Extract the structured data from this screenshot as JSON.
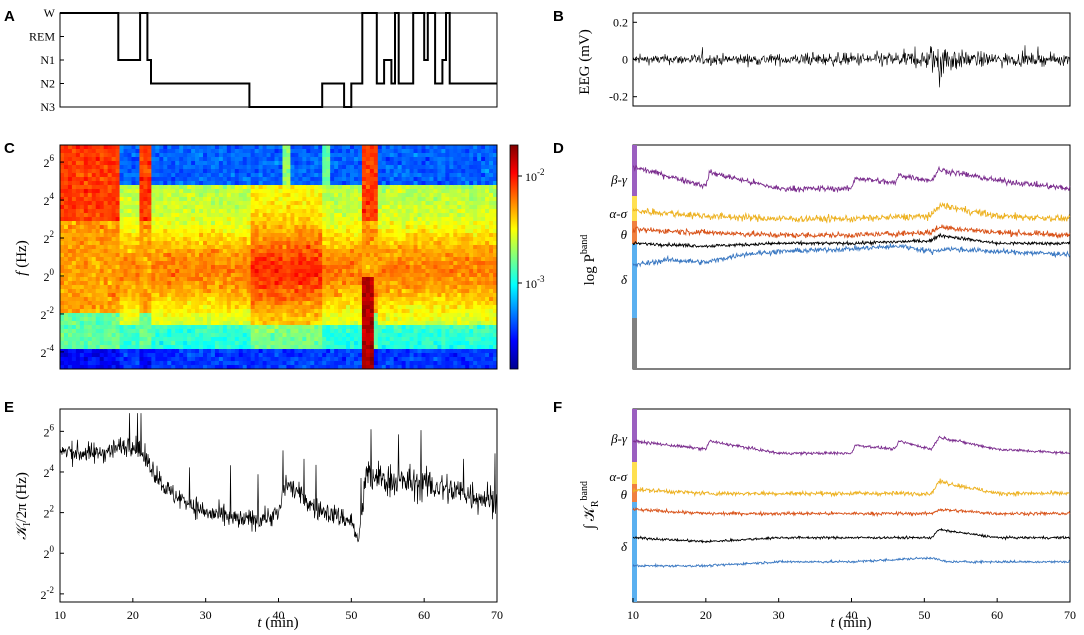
{
  "chart_data": [
    {
      "panel": "A",
      "type": "line",
      "title": "",
      "xlabel": "",
      "ylabel": "",
      "xlim": [
        10,
        70
      ],
      "y_categories": [
        "W",
        "REM",
        "N1",
        "N2",
        "N3"
      ],
      "color": "#000000",
      "series": [
        {
          "name": "hypnogram",
          "x": [
            10,
            18,
            18,
            21,
            21,
            22,
            22,
            22.5,
            22.5,
            36,
            36,
            46,
            46,
            49,
            49,
            50,
            50,
            51.5,
            51.5,
            53.5,
            53.5,
            54.5,
            54.5,
            55.5,
            55.5,
            56,
            56,
            56.5,
            56.5,
            58.5,
            58.5,
            60,
            60,
            60.5,
            60.5,
            61.5,
            61.5,
            62.5,
            62.5,
            63,
            63,
            63.5,
            63.5,
            70
          ],
          "y": [
            "W",
            "W",
            "N1",
            "N1",
            "W",
            "W",
            "N1",
            "N1",
            "N2",
            "N2",
            "N3",
            "N3",
            "N2",
            "N2",
            "N3",
            "N3",
            "N2",
            "N2",
            "W",
            "W",
            "N2",
            "N2",
            "N1",
            "N1",
            "N2",
            "N2",
            "W",
            "W",
            "N2",
            "N2",
            "W",
            "W",
            "N1",
            "N1",
            "W",
            "W",
            "N2",
            "N2",
            "N1",
            "N1",
            "W",
            "W",
            "N2",
            "N2"
          ]
        }
      ]
    },
    {
      "panel": "B",
      "type": "line",
      "ylabel": "EEG (mV)",
      "xlim": [
        10,
        70
      ],
      "ylim": [
        -0.25,
        0.25
      ],
      "yticks": [
        -0.2,
        0,
        0.2
      ],
      "ytick_labels": [
        "-0.2",
        "0",
        "0.2"
      ],
      "color": "#000000",
      "series": [
        {
          "name": "EEG",
          "x": [
            10,
            20,
            30,
            40,
            50,
            52,
            55,
            60,
            70
          ],
          "y_amplitude": [
            0.04,
            0.05,
            0.05,
            0.06,
            0.08,
            0.2,
            0.08,
            0.06,
            0.05
          ]
        }
      ]
    },
    {
      "panel": "C",
      "type": "heatmap",
      "xlabel": "",
      "ylabel": "f (Hz)",
      "xlim": [
        10,
        70
      ],
      "yticks_log2": [
        -4,
        -2,
        0,
        2,
        4,
        6
      ],
      "ytick_labels": [
        {
          "base": "2",
          "exp": "-4"
        },
        {
          "base": "2",
          "exp": "-2"
        },
        {
          "base": "2",
          "exp": "0"
        },
        {
          "base": "2",
          "exp": "2"
        },
        {
          "base": "2",
          "exp": "4"
        },
        {
          "base": "2",
          "exp": "6"
        }
      ],
      "colorbar": {
        "scale": "log",
        "ticks": [
          {
            "base": "10",
            "exp": "-3"
          },
          {
            "base": "10",
            "exp": "-2"
          }
        ],
        "colormap": "jet"
      }
    },
    {
      "panel": "D",
      "type": "line",
      "ylabel": "log P^band",
      "ylabel_main": "log P",
      "ylabel_sup": "band",
      "xlim": [
        10,
        70
      ],
      "series": [
        {
          "name": "β-γ",
          "color": "#7b2d8e",
          "x": [
            10,
            20,
            20.5,
            30,
            40,
            40.5,
            46,
            46.5,
            51,
            52,
            60,
            70
          ],
          "y": [
            7.4,
            6.7,
            7.2,
            6.6,
            6.6,
            7.0,
            6.8,
            7.1,
            6.9,
            7.3,
            6.9,
            6.6
          ]
        },
        {
          "name": "α-σ",
          "color": "#edb120",
          "x": [
            10,
            20,
            30,
            40,
            51,
            52,
            60,
            70
          ],
          "y": [
            5.8,
            5.6,
            5.5,
            5.5,
            5.6,
            6.0,
            5.6,
            5.5
          ]
        },
        {
          "name": "θ",
          "color": "#d95319",
          "x": [
            10,
            20,
            30,
            40,
            51,
            52,
            60,
            70
          ],
          "y": [
            5.1,
            5.0,
            4.9,
            4.9,
            5.0,
            5.2,
            5.0,
            4.9
          ]
        },
        {
          "name": "",
          "color": "#000000",
          "x": [
            10,
            20,
            30,
            40,
            51,
            52,
            60,
            70
          ],
          "y": [
            4.6,
            4.5,
            4.6,
            4.6,
            4.7,
            4.9,
            4.6,
            4.6
          ]
        },
        {
          "name": "δ",
          "color": "#3a78c2",
          "x": [
            10,
            15,
            20,
            25,
            30,
            40,
            47,
            51,
            53,
            60,
            70
          ],
          "y": [
            3.8,
            4.0,
            3.9,
            4.2,
            4.3,
            4.4,
            4.5,
            4.3,
            4.4,
            4.3,
            4.2
          ]
        }
      ],
      "side_bar_colors": [
        "#9b5fc0",
        "#ffe050",
        "#f08040",
        "#5ab0f0",
        "#808080"
      ]
    },
    {
      "panel": "E",
      "type": "line",
      "xlabel": "t (min)",
      "ylabel": "K_I/2π (Hz)",
      "ylabel_main": "𝒦",
      "ylabel_sub": "I",
      "ylabel_rest": "/2π (Hz)",
      "xlim": [
        10,
        70
      ],
      "xticks": [
        10,
        20,
        30,
        40,
        50,
        60,
        70
      ],
      "yticks_log2": [
        -2,
        0,
        2,
        4,
        6
      ],
      "ytick_labels": [
        {
          "base": "2",
          "exp": "-2"
        },
        {
          "base": "2",
          "exp": "0"
        },
        {
          "base": "2",
          "exp": "2"
        },
        {
          "base": "2",
          "exp": "4"
        },
        {
          "base": "2",
          "exp": "6"
        }
      ],
      "color": "#000000",
      "series": [
        {
          "name": "KI",
          "x": [
            10,
            15,
            20,
            22,
            25,
            30,
            35,
            40,
            41,
            45,
            50,
            51,
            52,
            55,
            60,
            65,
            70
          ],
          "y_log2": [
            5.0,
            4.9,
            5.4,
            4.5,
            3.0,
            2.0,
            1.6,
            1.9,
            3.5,
            2.2,
            1.6,
            0.5,
            3.8,
            3.6,
            3.4,
            3.0,
            2.6
          ]
        }
      ]
    },
    {
      "panel": "F",
      "type": "line",
      "xlabel": "t (min)",
      "ylabel": "∫ K_R^band",
      "ylabel_main": "∫ 𝒦",
      "ylabel_sub": "R",
      "ylabel_sup": "band",
      "xlim": [
        10,
        70
      ],
      "xticks": [
        10,
        20,
        30,
        40,
        50,
        60,
        70
      ],
      "series": [
        {
          "name": "β-γ",
          "color": "#7b2d8e",
          "x": [
            10,
            20,
            20.5,
            30,
            40,
            40.5,
            46,
            46.5,
            51,
            52,
            60,
            70
          ],
          "y": [
            6.8,
            6.6,
            6.8,
            6.5,
            6.5,
            6.7,
            6.6,
            6.8,
            6.6,
            6.9,
            6.6,
            6.5
          ]
        },
        {
          "name": "α-σ",
          "color": "#edb120",
          "x": [
            10,
            20,
            30,
            40,
            51,
            52,
            60,
            70
          ],
          "y": [
            5.6,
            5.5,
            5.5,
            5.5,
            5.5,
            5.8,
            5.5,
            5.5
          ]
        },
        {
          "name": "θ",
          "color": "#d95319",
          "x": [
            10,
            20,
            30,
            40,
            51,
            52,
            60,
            70
          ],
          "y": [
            5.1,
            5.0,
            5.0,
            5.0,
            5.0,
            5.1,
            5.0,
            5.0
          ]
        },
        {
          "name": "",
          "color": "#000000",
          "x": [
            10,
            20,
            30,
            40,
            51,
            52,
            60,
            70
          ],
          "y": [
            4.4,
            4.3,
            4.4,
            4.4,
            4.4,
            4.6,
            4.4,
            4.4
          ]
        },
        {
          "name": "δ",
          "color": "#3a78c2",
          "x": [
            10,
            20,
            30,
            40,
            51,
            53,
            60,
            70
          ],
          "y": [
            3.7,
            3.7,
            3.8,
            3.8,
            3.9,
            3.8,
            3.8,
            3.8
          ]
        }
      ],
      "side_bar_colors": [
        "#9b5fc0",
        "#ffe050",
        "#f08040",
        "#5ab0f0"
      ]
    }
  ],
  "labels": {
    "A": "A",
    "B": "B",
    "C": "C",
    "D": "D",
    "E": "E",
    "F": "F",
    "t_min": "t (min)",
    "t_italic": "t",
    "t_unit": "(min)",
    "f_italic": "f",
    "f_unit": "(Hz)"
  }
}
